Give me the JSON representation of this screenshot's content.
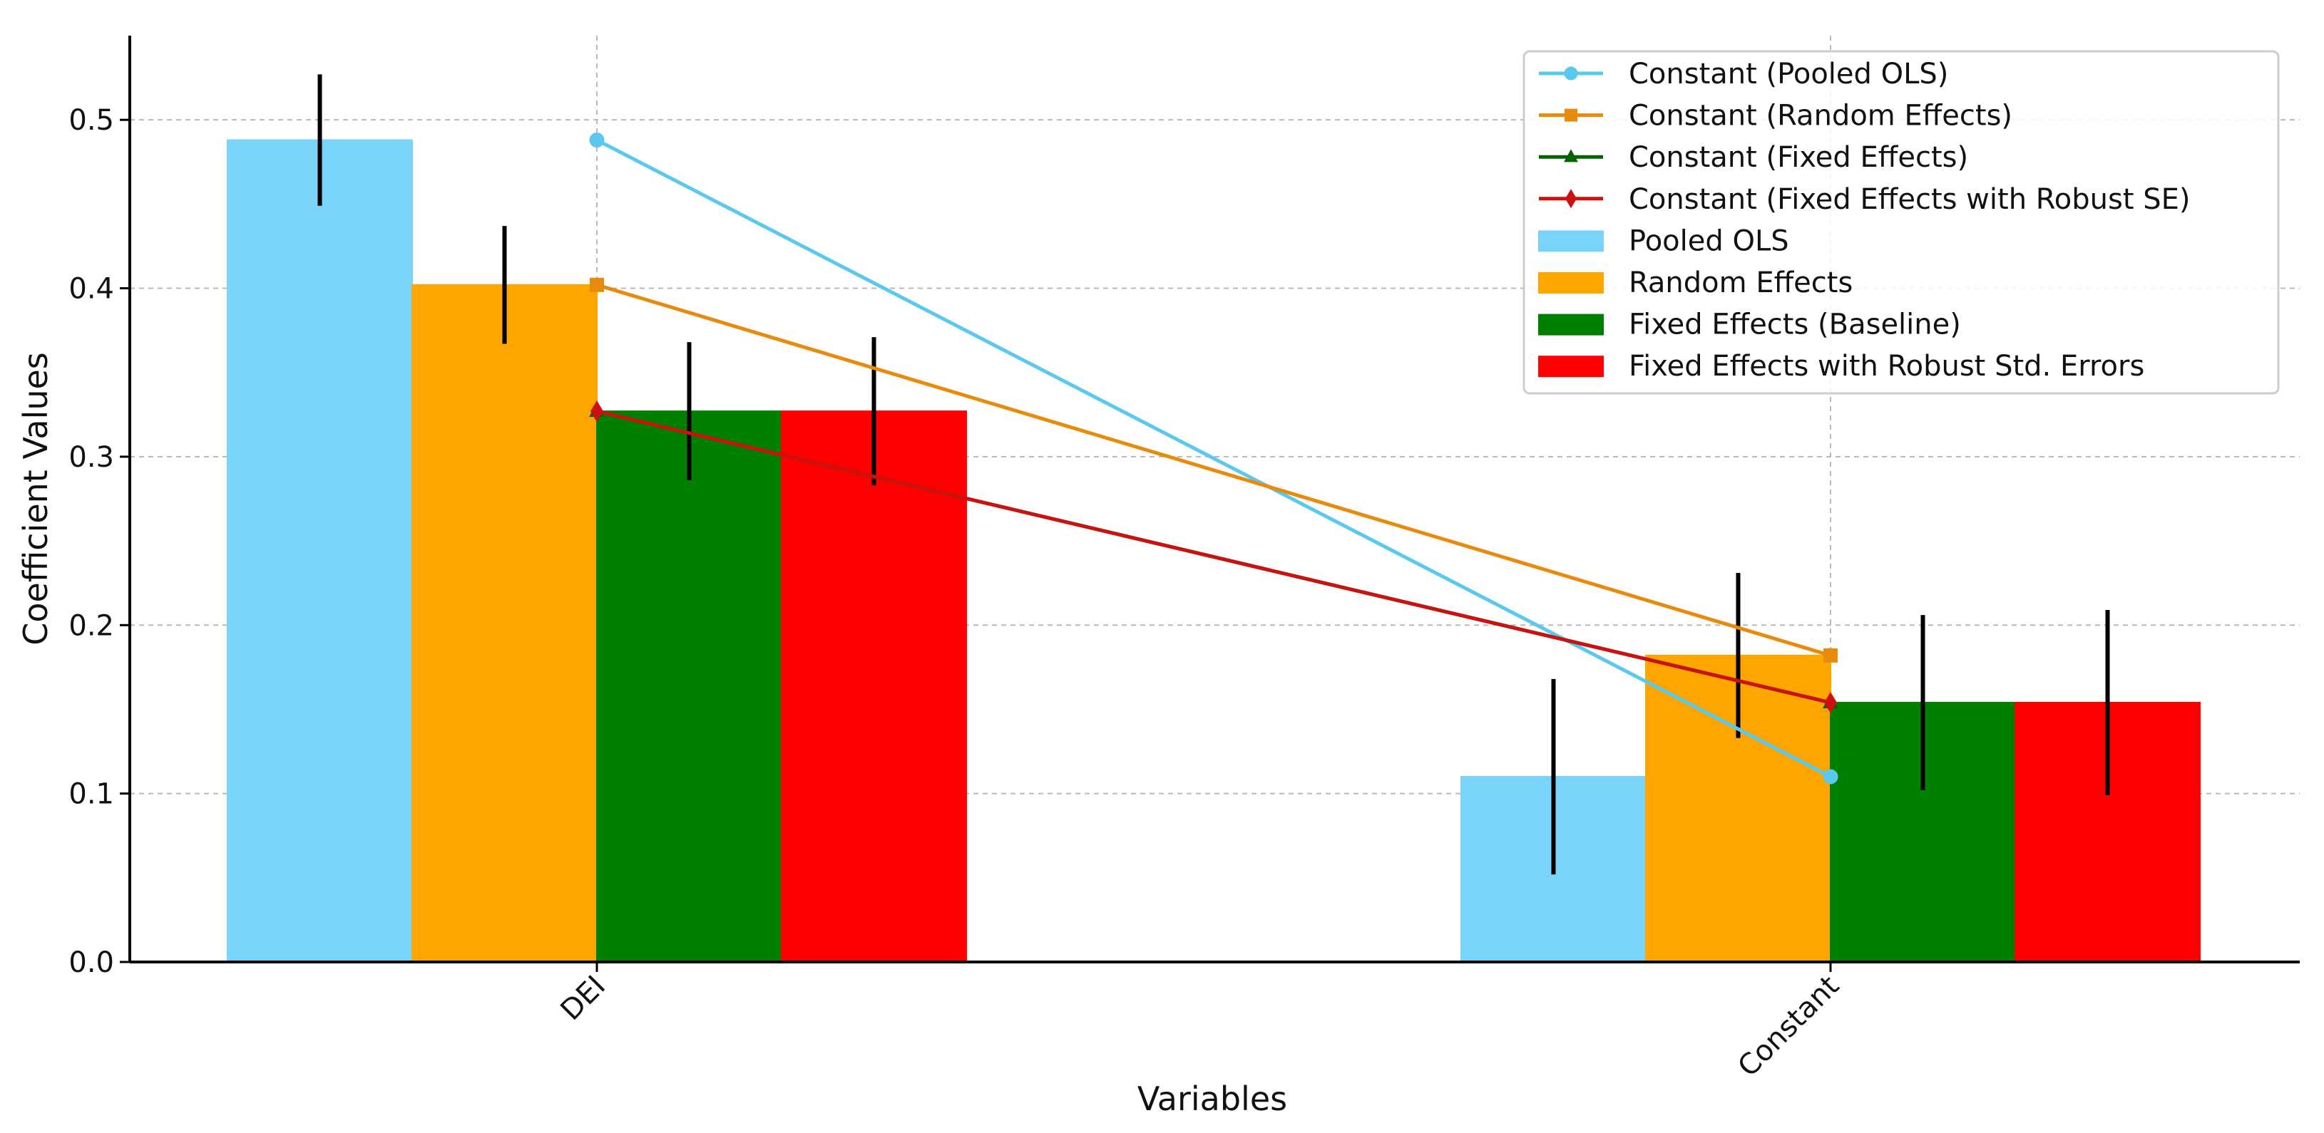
{
  "chart_data": {
    "type": "bar",
    "title": "",
    "xlabel": "Variables",
    "ylabel": "Coefficient Values",
    "categories": [
      "DEI",
      "Constant"
    ],
    "ylim": [
      0,
      0.55
    ],
    "yticks": [
      0.0,
      0.1,
      0.2,
      0.3,
      0.4,
      0.5
    ],
    "ytick_labels": [
      "0.0",
      "0.1",
      "0.2",
      "0.3",
      "0.4",
      "0.5"
    ],
    "grid": true,
    "legend_position": "top-right",
    "series": [
      {
        "name": "Pooled OLS",
        "color": "#7ad3f8",
        "values": [
          0.488,
          0.11
        ],
        "errors": [
          0.039,
          0.058
        ]
      },
      {
        "name": "Random Effects",
        "color": "#ffa500",
        "values": [
          0.402,
          0.182
        ],
        "errors": [
          0.035,
          0.049
        ]
      },
      {
        "name": "Fixed Effects (Baseline)",
        "color": "#008000",
        "values": [
          0.327,
          0.154
        ],
        "errors": [
          0.041,
          0.052
        ]
      },
      {
        "name": "Fixed Effects with Robust Std. Errors",
        "color": "#ff0000",
        "values": [
          0.327,
          0.154
        ],
        "errors": [
          0.044,
          0.055
        ]
      }
    ],
    "lines": [
      {
        "name": "Constant (Pooled OLS)",
        "color": "#5bc8ee",
        "marker": "circle",
        "values": [
          0.488,
          0.11
        ]
      },
      {
        "name": "Constant (Random Effects)",
        "color": "#e88a0b",
        "marker": "square",
        "values": [
          0.402,
          0.182
        ]
      },
      {
        "name": "Constant (Fixed Effects)",
        "color": "#006400",
        "marker": "triangle",
        "values": [
          0.327,
          0.154
        ]
      },
      {
        "name": "Constant (Fixed Effects with Robust SE)",
        "color": "#cc1111",
        "marker": "diamond",
        "values": [
          0.327,
          0.154
        ]
      }
    ]
  }
}
